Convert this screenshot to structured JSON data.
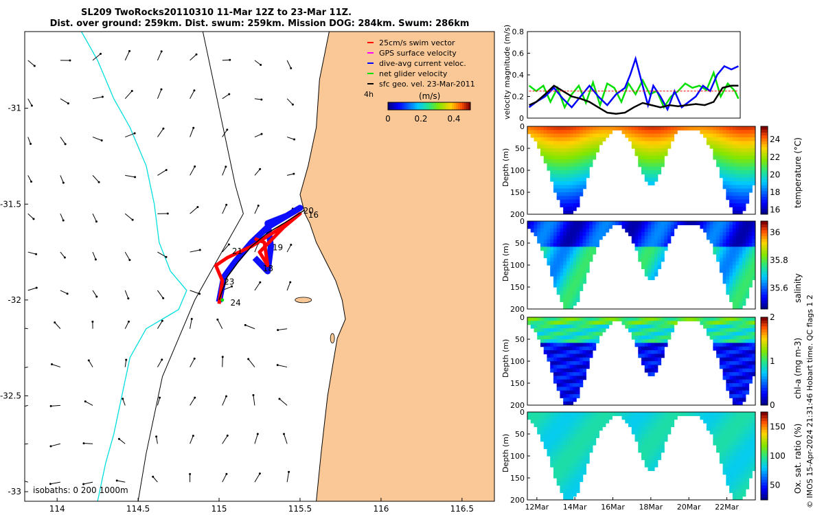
{
  "title_line1": "SL209 TwoRocks20110310 11-Mar 12Z to 23-Mar 11Z.",
  "title_line2": "Dist. over ground: 259km. Dist. swum: 259km. Mission DOG: 284km. Swum: 286km",
  "side_label": "© IMOS 15-Apr-2024 21:31:46 Hobart time. QC flags 1  2",
  "colors": {
    "land": "#fac896",
    "sea": "#ffffff",
    "isobath": "#000000",
    "coast_line": "#00dede",
    "track_red": "#ff0000",
    "track_blue": "#0000ff",
    "track_black": "#000000",
    "net_green": "#00e000",
    "swim_red": "#ff0000"
  },
  "chart_data": [
    {
      "type": "scatter",
      "name_hint": "map",
      "xlim": [
        113.8,
        116.7
      ],
      "ylim": [
        -33.05,
        -30.6
      ],
      "xticks": [
        "114",
        "114.5",
        "115",
        "115.5",
        "116",
        "116.5"
      ],
      "xtick_values": [
        114,
        114.5,
        115,
        115.5,
        116,
        116.5
      ],
      "yticks": [
        "-31",
        "-31.5",
        "-32",
        "-32.5",
        "-33"
      ],
      "ytick_values": [
        -31,
        -31.5,
        -32,
        -32.5,
        -33
      ],
      "legend": [
        {
          "label": "25cm/s swim vector",
          "color": "#ff0000"
        },
        {
          "label": "GPS surface velocity",
          "color": "#ff00ff"
        },
        {
          "label": "dive-avg current veloc.",
          "color": "#0000ff"
        },
        {
          "label": "net glider velocity",
          "color": "#00e000"
        },
        {
          "label": "sfc geo. vel. 23-Mar-2011",
          "color": "#000000"
        }
      ],
      "legend_placement": "top-right",
      "colorbar": {
        "label": "(m/s)",
        "ticks": [
          "0",
          "0.2",
          "0.4"
        ],
        "range": [
          0,
          0.5
        ],
        "extra_label": "4h"
      },
      "isobaths_label": "isobaths: 0   200  1000m",
      "day_labels": [
        {
          "text": "20",
          "lon": 115.52,
          "lat": -31.55
        },
        {
          "text": "16",
          "lon": 115.55,
          "lat": -31.57
        },
        {
          "text": "19",
          "lon": 115.33,
          "lat": -31.74
        },
        {
          "text": "21",
          "lon": 115.08,
          "lat": -31.76
        },
        {
          "text": "18",
          "lon": 115.27,
          "lat": -31.85
        },
        {
          "text": "23",
          "lon": 115.03,
          "lat": -31.92
        },
        {
          "text": "24",
          "lon": 115.07,
          "lat": -32.03
        }
      ],
      "vector_arrows_shown": true
    },
    {
      "type": "line",
      "name_hint": "velocity",
      "ylabel": "velocity magnitude (m/s)",
      "ylim": [
        0,
        0.8
      ],
      "yticks": [
        "0",
        "0.2",
        "0.4",
        "0.6",
        "0.8"
      ],
      "ytick_values": [
        0,
        0.2,
        0.4,
        0.6,
        0.8
      ],
      "xlim": [
        11.5,
        23.5
      ],
      "series": [
        {
          "color": "#00e000",
          "x": [
            11.6,
            12,
            12.4,
            12.8,
            13.2,
            13.6,
            14,
            14.4,
            14.8,
            15.2,
            15.6,
            16,
            16.4,
            16.8,
            17.2,
            17.6,
            18,
            18.4,
            18.8,
            19.2,
            19.6,
            20,
            20.4,
            20.8,
            21.2,
            21.6,
            22,
            22.4,
            22.8,
            23.2,
            23.4
          ],
          "y": [
            0.3,
            0.25,
            0.3,
            0.15,
            0.28,
            0.1,
            0.22,
            0.3,
            0.14,
            0.33,
            0.12,
            0.32,
            0.28,
            0.15,
            0.32,
            0.22,
            0.35,
            0.22,
            0.25,
            0.1,
            0.2,
            0.25,
            0.32,
            0.28,
            0.3,
            0.26,
            0.42,
            0.2,
            0.32,
            0.25,
            0.18
          ]
        },
        {
          "color": "#0000ff",
          "x": [
            11.6,
            12,
            12.5,
            13,
            13.5,
            14,
            14.5,
            15,
            15.5,
            16,
            16.5,
            17,
            17.3,
            17.6,
            18,
            18.3,
            18.6,
            19,
            19.4,
            19.8,
            20.2,
            20.6,
            21,
            21.4,
            21.8,
            22.2,
            22.6,
            23,
            23.4
          ],
          "y": [
            0.1,
            0.15,
            0.2,
            0.28,
            0.18,
            0.1,
            0.2,
            0.3,
            0.2,
            0.12,
            0.22,
            0.28,
            0.4,
            0.55,
            0.3,
            0.12,
            0.3,
            0.2,
            0.08,
            0.25,
            0.1,
            0.15,
            0.2,
            0.3,
            0.25,
            0.4,
            0.48,
            0.45,
            0.48
          ]
        },
        {
          "color": "#000000",
          "x": [
            11.6,
            12,
            12.5,
            13,
            13.5,
            14,
            14.5,
            15,
            15.5,
            16,
            16.5,
            17,
            17.5,
            18,
            18.5,
            19,
            19.5,
            20,
            20.5,
            21,
            21.5,
            22,
            22.5,
            23,
            23.4
          ],
          "y": [
            0.12,
            0.15,
            0.22,
            0.3,
            0.25,
            0.2,
            0.18,
            0.15,
            0.1,
            0.05,
            0.04,
            0.05,
            0.1,
            0.14,
            0.12,
            0.1,
            0.12,
            0.11,
            0.12,
            0.13,
            0.12,
            0.15,
            0.28,
            0.3,
            0.3
          ]
        },
        {
          "color": "#ff0000",
          "x": [
            11.6,
            23.4
          ],
          "y": [
            0.25,
            0.25
          ]
        }
      ]
    },
    {
      "type": "heatmap",
      "name_hint": "temperature",
      "ylabel": "Depth (m)",
      "cblabel": "temperature (°C)",
      "yticks": [
        "0",
        "50",
        "100",
        "150",
        "200"
      ],
      "ytick_values": [
        0,
        50,
        100,
        150,
        200
      ],
      "cbticks": [
        "16",
        "18",
        "20",
        "22",
        "24"
      ],
      "cbtick_values": [
        16,
        18,
        20,
        22,
        24
      ],
      "cbrange": [
        15.5,
        25.5
      ]
    },
    {
      "type": "heatmap",
      "name_hint": "salinity",
      "ylabel": "Depth (m)",
      "cblabel": "salinity",
      "yticks": [
        "0",
        "50",
        "100",
        "150",
        "200"
      ],
      "ytick_values": [
        0,
        50,
        100,
        150,
        200
      ],
      "cbticks": [
        "35.6",
        "35.8",
        "36"
      ],
      "cbtick_values": [
        35.6,
        35.8,
        36
      ],
      "cbrange": [
        35.45,
        36.08
      ]
    },
    {
      "type": "heatmap",
      "name_hint": "chla",
      "ylabel": "Depth (m)",
      "cblabel": "chl-a (mg m-3)",
      "yticks": [
        "0",
        "50",
        "100",
        "150",
        "200"
      ],
      "ytick_values": [
        0,
        50,
        100,
        150,
        200
      ],
      "cbticks": [
        "0",
        "1",
        "2"
      ],
      "cbtick_values": [
        0,
        1,
        2
      ],
      "cbrange": [
        0,
        2
      ]
    },
    {
      "type": "heatmap",
      "name_hint": "oxygen",
      "ylabel": "Depth (m)",
      "cblabel": "Ox. sat. ratio (%)",
      "yticks": [
        "0",
        "50",
        "100",
        "150",
        "200"
      ],
      "ytick_values": [
        0,
        50,
        100,
        150,
        200
      ],
      "cbticks": [
        "50",
        "100",
        "150"
      ],
      "cbtick_values": [
        50,
        100,
        150
      ],
      "cbrange": [
        25,
        175
      ],
      "xticks": [
        "12Mar",
        "14Mar",
        "16Mar",
        "18Mar",
        "20Mar",
        "22Mar"
      ],
      "xtick_values": [
        12,
        14,
        16,
        18,
        20,
        22
      ],
      "xlim": [
        11.5,
        23.5
      ]
    }
  ]
}
